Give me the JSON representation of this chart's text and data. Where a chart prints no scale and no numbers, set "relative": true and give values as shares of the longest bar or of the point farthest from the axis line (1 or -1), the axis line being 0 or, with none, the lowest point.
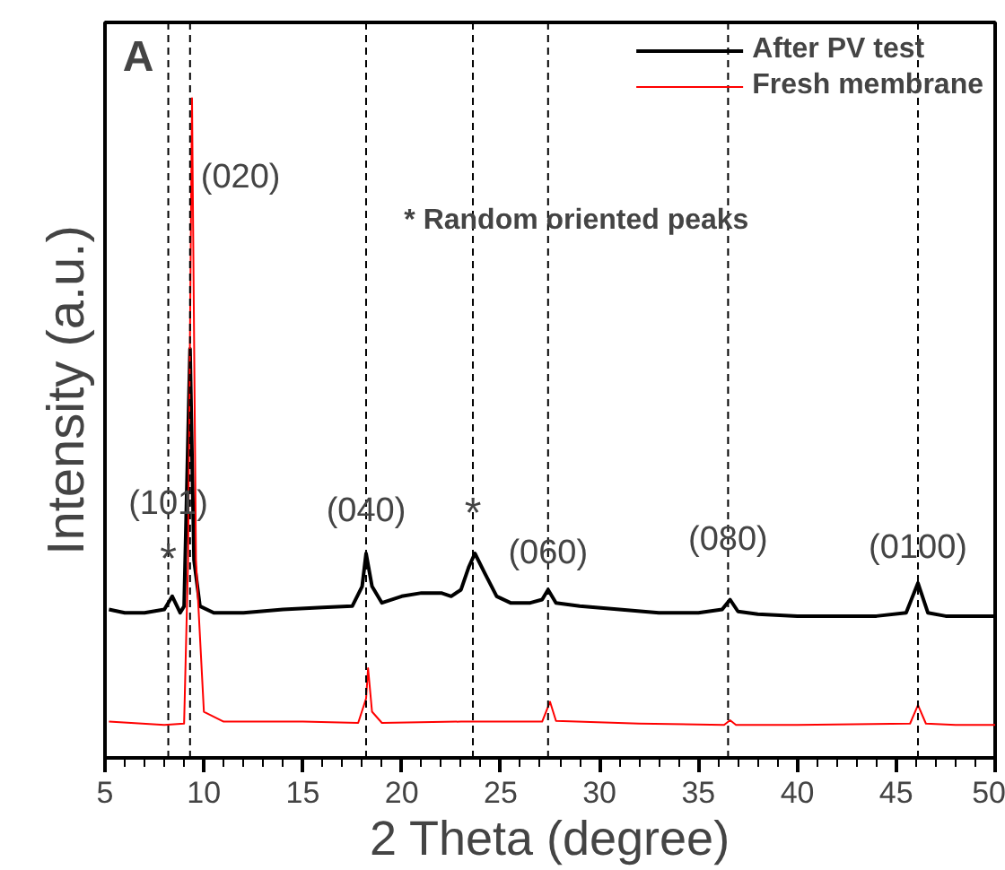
{
  "chart_data": {
    "type": "line",
    "relative": true,
    "xlabel": "2 Theta (degree)",
    "ylabel": "Intensity (a.u.)",
    "xlim": [
      5,
      50
    ],
    "xticks": [
      5,
      10,
      15,
      20,
      25,
      30,
      35,
      40,
      45,
      50
    ],
    "legend": "top right",
    "grid": false,
    "marker": "none",
    "line_style": "solid",
    "series": [
      {
        "name": "After PV test",
        "color": "#000000",
        "x": [
          5.2,
          6,
          7,
          8,
          8.4,
          8.8,
          9.0,
          9.3,
          9.5,
          9.8,
          10.5,
          12,
          14,
          16,
          17.5,
          18.0,
          18.2,
          18.5,
          19,
          20,
          21,
          22,
          22.5,
          23,
          23.4,
          23.7,
          24.2,
          24.8,
          25.5,
          26.5,
          27.1,
          27.4,
          27.8,
          29,
          31,
          33,
          35,
          36.2,
          36.6,
          37,
          38,
          40,
          42,
          44,
          45.5,
          46.1,
          46.6,
          47.5,
          49,
          50
        ],
        "values": [
          0.225,
          0.22,
          0.22,
          0.225,
          0.245,
          0.22,
          0.23,
          0.62,
          0.3,
          0.23,
          0.22,
          0.22,
          0.225,
          0.228,
          0.23,
          0.26,
          0.31,
          0.26,
          0.235,
          0.245,
          0.25,
          0.25,
          0.245,
          0.255,
          0.29,
          0.31,
          0.28,
          0.245,
          0.235,
          0.235,
          0.24,
          0.255,
          0.235,
          0.23,
          0.225,
          0.22,
          0.22,
          0.225,
          0.24,
          0.222,
          0.218,
          0.215,
          0.215,
          0.215,
          0.22,
          0.265,
          0.22,
          0.215,
          0.215,
          0.215
        ]
      },
      {
        "name": "Fresh membrane",
        "color": "#ff0000",
        "x": [
          5.2,
          8,
          9.0,
          9.2,
          9.4,
          9.6,
          10.0,
          11,
          15,
          17.8,
          18.2,
          18.3,
          18.5,
          19,
          23,
          27.1,
          27.5,
          27.8,
          32,
          36.3,
          36.6,
          36.9,
          40,
          45.7,
          46.1,
          46.5,
          48,
          50
        ],
        "values": [
          0.055,
          0.05,
          0.052,
          0.3,
          1,
          0.3,
          0.07,
          0.055,
          0.055,
          0.053,
          0.09,
          0.136,
          0.07,
          0.053,
          0.055,
          0.055,
          0.085,
          0.056,
          0.052,
          0.05,
          0.057,
          0.05,
          0.05,
          0.052,
          0.08,
          0.052,
          0.05,
          0.05
        ]
      }
    ],
    "ref_lines": [
      {
        "axis": "x",
        "value": 8.2,
        "line_style": "dashed",
        "color": "#000000"
      },
      {
        "axis": "x",
        "value": 9.3,
        "line_style": "dashed",
        "color": "#000000"
      },
      {
        "axis": "x",
        "value": 18.2,
        "line_style": "dashed",
        "color": "#000000"
      },
      {
        "axis": "x",
        "value": 23.6,
        "line_style": "dashed",
        "color": "#000000"
      },
      {
        "axis": "x",
        "value": 27.4,
        "line_style": "dashed",
        "color": "#000000"
      },
      {
        "axis": "x",
        "value": 36.5,
        "line_style": "dashed",
        "color": "#000000"
      },
      {
        "axis": "x",
        "value": 46.1,
        "line_style": "dashed",
        "color": "#000000"
      }
    ],
    "annotations": [
      "A",
      "* Random oriented peaks",
      {
        "text": "(020)",
        "x": 9.3,
        "y": 0.88
      },
      {
        "text": "(101)",
        "x": 8.2,
        "y": 0.385
      },
      {
        "text": "*",
        "x": 8.2,
        "y": 0.3
      },
      {
        "text": "(040)",
        "x": 18.2,
        "y": 0.374
      },
      {
        "text": "*",
        "x": 23.6,
        "y": 0.37
      },
      {
        "text": "(060)",
        "x": 27.4,
        "y": 0.31
      },
      {
        "text": "(080)",
        "x": 36.5,
        "y": 0.33
      },
      {
        "text": "(0100)",
        "x": 46.1,
        "y": 0.318
      }
    ]
  }
}
